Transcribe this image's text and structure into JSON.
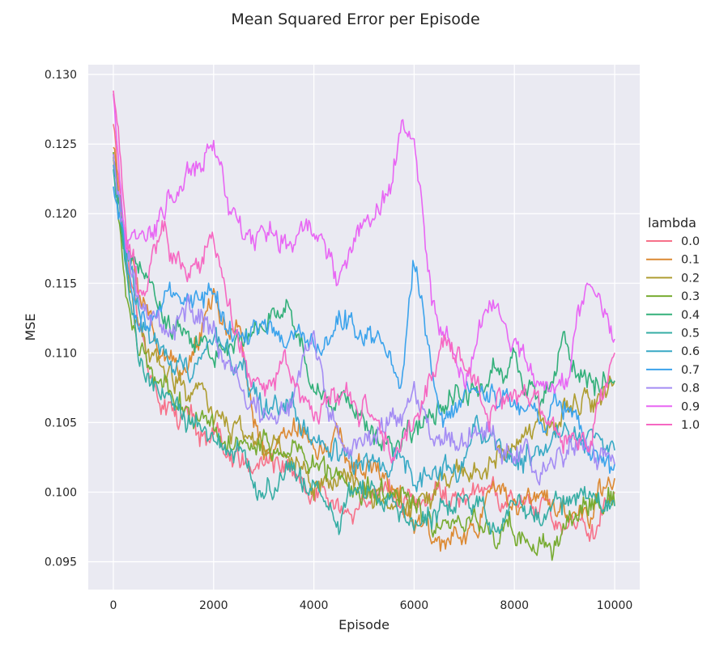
{
  "chart_data": {
    "type": "line",
    "title": "Mean Squared Error per Episode",
    "xlabel": "Episode",
    "ylabel": "MSE",
    "xlim": [
      -500,
      10500
    ],
    "ylim": [
      0.093,
      0.1307
    ],
    "x_ticks": [
      0,
      2000,
      4000,
      6000,
      8000,
      10000
    ],
    "y_ticks": [
      0.095,
      0.1,
      0.105,
      0.11,
      0.115,
      0.12,
      0.125,
      0.13
    ],
    "x_tick_labels": [
      "0",
      "2000",
      "4000",
      "6000",
      "8000",
      "10000"
    ],
    "y_tick_labels": [
      "0.095",
      "0.100",
      "0.105",
      "0.110",
      "0.115",
      "0.120",
      "0.125",
      "0.130"
    ],
    "grid": true,
    "background_color": "#eaeaf2",
    "legend": {
      "title": "lambda",
      "placement": "right"
    },
    "x": [
      0,
      250,
      500,
      750,
      1000,
      1500,
      2000,
      2500,
      3000,
      3500,
      4000,
      4500,
      5000,
      5500,
      5750,
      6000,
      6500,
      7000,
      7500,
      8000,
      8500,
      9000,
      9500,
      10000
    ],
    "series": [
      {
        "name": "0.0",
        "color": "#f77189",
        "values": [
          0.127,
          0.117,
          0.113,
          0.109,
          0.106,
          0.105,
          0.104,
          0.102,
          0.102,
          0.101,
          0.1,
          0.1,
          0.1,
          0.1,
          0.1,
          0.099,
          0.099,
          0.099,
          0.1,
          0.1,
          0.099,
          0.098,
          0.098,
          0.1
        ]
      },
      {
        "name": "0.1",
        "color": "#dc8932",
        "values": [
          0.125,
          0.118,
          0.114,
          0.112,
          0.11,
          0.109,
          0.114,
          0.11,
          0.104,
          0.104,
          0.103,
          0.103,
          0.101,
          0.101,
          0.099,
          0.097,
          0.097,
          0.097,
          0.099,
          0.1,
          0.098,
          0.099,
          0.099,
          0.101
        ]
      },
      {
        "name": "0.2",
        "color": "#ae9d31",
        "values": [
          0.124,
          0.116,
          0.112,
          0.11,
          0.108,
          0.107,
          0.106,
          0.104,
          0.103,
          0.103,
          0.102,
          0.101,
          0.101,
          0.1,
          0.1,
          0.099,
          0.101,
          0.102,
          0.103,
          0.104,
          0.105,
          0.106,
          0.107,
          0.108
        ]
      },
      {
        "name": "0.3",
        "color": "#77ab31",
        "values": [
          0.124,
          0.115,
          0.111,
          0.109,
          0.108,
          0.106,
          0.105,
          0.104,
          0.104,
          0.103,
          0.102,
          0.101,
          0.101,
          0.1,
          0.1,
          0.099,
          0.098,
          0.098,
          0.097,
          0.097,
          0.095,
          0.097,
          0.099,
          0.099
        ]
      },
      {
        "name": "0.4",
        "color": "#33b07a",
        "values": [
          0.124,
          0.116,
          0.117,
          0.115,
          0.112,
          0.112,
          0.11,
          0.11,
          0.112,
          0.113,
          0.108,
          0.107,
          0.106,
          0.104,
          0.104,
          0.105,
          0.106,
          0.107,
          0.108,
          0.109,
          0.108,
          0.11,
          0.108,
          0.108
        ]
      },
      {
        "name": "0.5",
        "color": "#36ada4",
        "values": [
          0.123,
          0.116,
          0.11,
          0.108,
          0.107,
          0.106,
          0.104,
          0.103,
          0.099,
          0.101,
          0.1,
          0.098,
          0.1,
          0.099,
          0.098,
          0.098,
          0.099,
          0.099,
          0.098,
          0.099,
          0.099,
          0.099,
          0.099,
          0.099
        ]
      },
      {
        "name": "0.6",
        "color": "#38a9c5",
        "values": [
          0.123,
          0.117,
          0.112,
          0.111,
          0.11,
          0.108,
          0.11,
          0.108,
          0.107,
          0.107,
          0.104,
          0.103,
          0.103,
          0.102,
          0.103,
          0.101,
          0.102,
          0.103,
          0.104,
          0.103,
          0.103,
          0.104,
          0.105,
          0.103
        ]
      },
      {
        "name": "0.7",
        "color": "#3ba3ec",
        "values": [
          0.122,
          0.117,
          0.112,
          0.112,
          0.114,
          0.114,
          0.114,
          0.111,
          0.112,
          0.111,
          0.11,
          0.113,
          0.111,
          0.11,
          0.108,
          0.116,
          0.106,
          0.106,
          0.107,
          0.106,
          0.106,
          0.107,
          0.104,
          0.102
        ]
      },
      {
        "name": "0.8",
        "color": "#a48cf4",
        "values": [
          0.124,
          0.117,
          0.113,
          0.113,
          0.112,
          0.113,
          0.112,
          0.107,
          0.106,
          0.106,
          0.112,
          0.104,
          0.104,
          0.105,
          0.104,
          0.106,
          0.104,
          0.103,
          0.104,
          0.103,
          0.102,
          0.103,
          0.103,
          0.102
        ]
      },
      {
        "name": "0.9",
        "color": "#e866f4",
        "values": [
          0.128,
          0.118,
          0.118,
          0.119,
          0.12,
          0.123,
          0.125,
          0.119,
          0.119,
          0.118,
          0.118,
          0.116,
          0.12,
          0.122,
          0.127,
          0.125,
          0.112,
          0.108,
          0.114,
          0.111,
          0.108,
          0.108,
          0.115,
          0.111
        ]
      },
      {
        "name": "1.0",
        "color": "#f668c2",
        "values": [
          0.129,
          0.119,
          0.114,
          0.116,
          0.118,
          0.115,
          0.118,
          0.111,
          0.107,
          0.109,
          0.106,
          0.107,
          0.106,
          0.104,
          0.103,
          0.104,
          0.11,
          0.11,
          0.106,
          0.107,
          0.105,
          0.104,
          0.103,
          0.11
        ]
      }
    ]
  }
}
